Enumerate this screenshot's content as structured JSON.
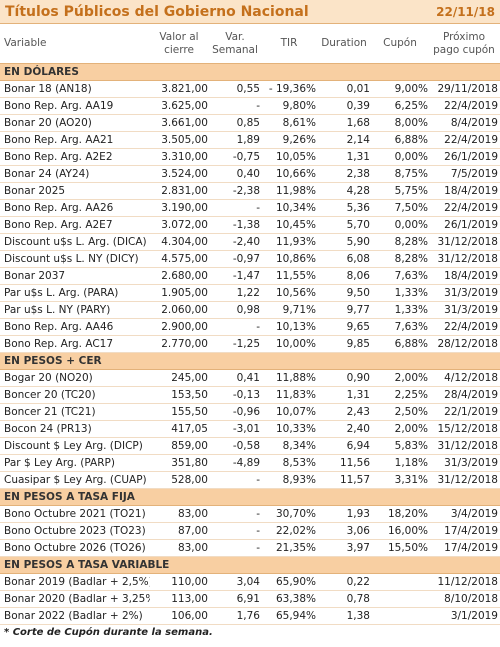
{
  "header": {
    "title": "Títulos Públicos del Gobierno Nacional",
    "date": "22/11/18"
  },
  "table": {
    "columns": [
      "Variable",
      "Valor al cierre",
      "Var. Semanal",
      "TIR",
      "Duration",
      "Cupón",
      "Próximo pago cupón"
    ],
    "sections": [
      {
        "title": "EN DÓLARES",
        "rows": [
          [
            "Bonar 18 (AN18)",
            "3.821,00",
            "0,55",
            "- 19,36%",
            "0,01",
            "9,00%",
            "29/11/2018"
          ],
          [
            "Bono Rep. Arg. AA19",
            "3.625,00",
            "-",
            "9,80%",
            "0,39",
            "6,25%",
            "22/4/2019"
          ],
          [
            "Bonar 20 (AO20)",
            "3.661,00",
            "0,85",
            "8,61%",
            "1,68",
            "8,00%",
            "8/4/2019"
          ],
          [
            "Bono Rep. Arg. AA21",
            "3.505,00",
            "1,89",
            "9,26%",
            "2,14",
            "6,88%",
            "22/4/2019"
          ],
          [
            "Bono Rep. Arg. A2E2",
            "3.310,00",
            "-0,75",
            "10,05%",
            "1,31",
            "0,00%",
            "26/1/2019"
          ],
          [
            "Bonar 24 (AY24)",
            "3.524,00",
            "0,40",
            "10,66%",
            "2,38",
            "8,75%",
            "7/5/2019"
          ],
          [
            "Bonar 2025",
            "2.831,00",
            "-2,38",
            "11,98%",
            "4,28",
            "5,75%",
            "18/4/2019"
          ],
          [
            "Bono Rep. Arg. AA26",
            "3.190,00",
            "-",
            "10,34%",
            "5,36",
            "7,50%",
            "22/4/2019"
          ],
          [
            "Bono Rep. Arg. A2E7",
            "3.072,00",
            "-1,38",
            "10,45%",
            "5,70",
            "0,00%",
            "26/1/2019"
          ],
          [
            "Discount u$s L. Arg. (DICA)",
            "4.304,00",
            "-2,40",
            "11,93%",
            "5,90",
            "8,28%",
            "31/12/2018"
          ],
          [
            "Discount u$s L. NY (DICY)",
            "4.575,00",
            "-0,97",
            "10,86%",
            "6,08",
            "8,28%",
            "31/12/2018"
          ],
          [
            "Bonar 2037",
            "2.680,00",
            "-1,47",
            "11,55%",
            "8,06",
            "7,63%",
            "18/4/2019"
          ],
          [
            "Par u$s L. Arg. (PARA)",
            "1.905,00",
            "1,22",
            "10,56%",
            "9,50",
            "1,33%",
            "31/3/2019"
          ],
          [
            "Par u$s L. NY (PARY)",
            "2.060,00",
            "0,98",
            "9,71%",
            "9,77",
            "1,33%",
            "31/3/2019"
          ],
          [
            "Bono Rep. Arg. AA46",
            "2.900,00",
            "-",
            "10,13%",
            "9,65",
            "7,63%",
            "22/4/2019"
          ],
          [
            "Bono Rep. Arg. AC17",
            "2.770,00",
            "-1,25",
            "10,00%",
            "9,85",
            "6,88%",
            "28/12/2018"
          ]
        ]
      },
      {
        "title": "EN PESOS + CER",
        "rows": [
          [
            "Bogar 20 (NO20)",
            "245,00",
            "0,41",
            "11,88%",
            "0,90",
            "2,00%",
            "4/12/2018"
          ],
          [
            "Boncer 20 (TC20)",
            "153,50",
            "-0,13",
            "11,83%",
            "1,31",
            "2,25%",
            "28/4/2019"
          ],
          [
            "Boncer 21 (TC21)",
            "155,50",
            "-0,96",
            "10,07%",
            "2,43",
            "2,50%",
            "22/1/2019"
          ],
          [
            "Bocon 24 (PR13)",
            "417,05",
            "-3,01",
            "10,33%",
            "2,40",
            "2,00%",
            "15/12/2018"
          ],
          [
            "Discount $ Ley Arg. (DICP)",
            "859,00",
            "-0,58",
            "8,34%",
            "6,94",
            "5,83%",
            "31/12/2018"
          ],
          [
            "Par $ Ley Arg. (PARP)",
            "351,80",
            "-4,89",
            "8,53%",
            "11,56",
            "1,18%",
            "31/3/2019"
          ],
          [
            "Cuasipar $ Ley Arg. (CUAP)",
            "528,00",
            "-",
            "8,93%",
            "11,57",
            "3,31%",
            "31/12/2018"
          ]
        ]
      },
      {
        "title": "EN PESOS A TASA FIJA",
        "rows": [
          [
            "Bono Octubre 2021 (TO21)",
            "83,00",
            "-",
            "30,70%",
            "1,93",
            "18,20%",
            "3/4/2019"
          ],
          [
            "Bono Octubre 2023 (TO23)",
            "87,00",
            "-",
            "22,02%",
            "3,06",
            "16,00%",
            "17/4/2019"
          ],
          [
            "Bono Octubre 2026 (TO26)",
            "83,00",
            "-",
            "21,35%",
            "3,97",
            "15,50%",
            "17/4/2019"
          ]
        ]
      },
      {
        "title": "EN PESOS A TASA VARIABLE",
        "rows": [
          [
            "Bonar 2019 (Badlar + 2,5%)",
            "110,00",
            "3,04",
            "65,90%",
            "0,22",
            null,
            "11/12/2018"
          ],
          [
            "Bonar 2020 (Badlar + 3,25%",
            "113,00",
            "6,91",
            "63,38%",
            "0,78",
            null,
            "8/10/2018"
          ],
          [
            "Bonar 2022 (Badlar + 2%)",
            "106,00",
            "1,76",
            "65,94%",
            "1,38",
            null,
            "3/1/2019"
          ]
        ]
      }
    ]
  },
  "footnote": "* Corte de Cupón durante la semana."
}
